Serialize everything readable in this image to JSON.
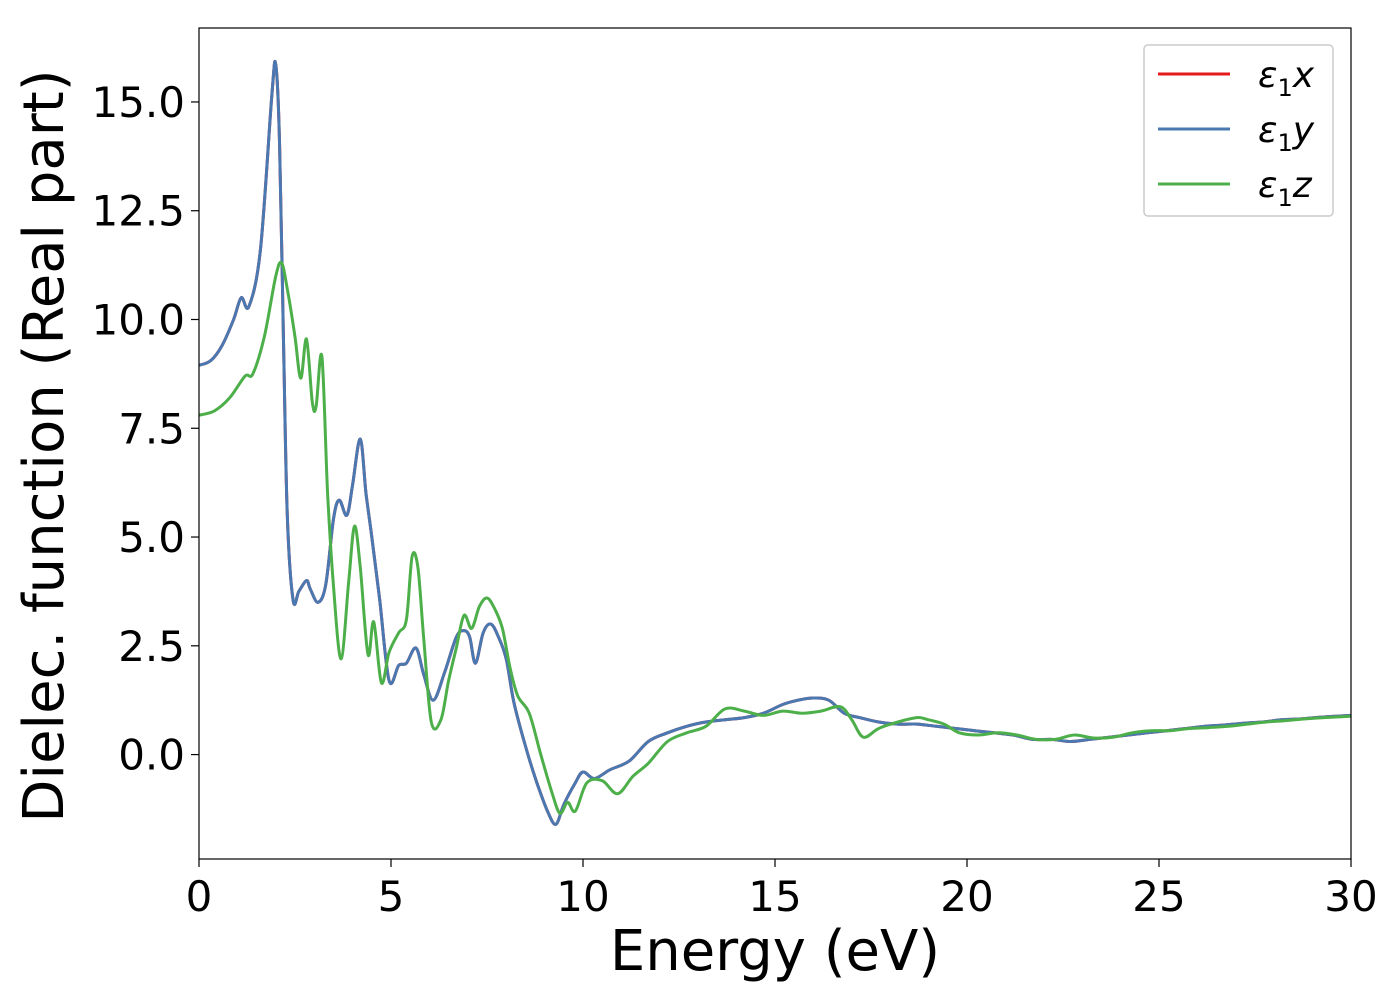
{
  "chart_data": {
    "type": "line",
    "title": "",
    "xlabel": "Energy (eV)",
    "ylabel": "Dielec. function (Real part)",
    "xlim": [
      0,
      30
    ],
    "ylim": [
      -2.4,
      16.7
    ],
    "xticks": [
      {
        "value": 0,
        "label": "0"
      },
      {
        "value": 5,
        "label": "5"
      },
      {
        "value": 10,
        "label": "10"
      },
      {
        "value": 15,
        "label": "15"
      },
      {
        "value": 20,
        "label": "20"
      },
      {
        "value": 25,
        "label": "25"
      },
      {
        "value": 30,
        "label": "30"
      }
    ],
    "yticks": [
      {
        "value": 0,
        "label": "0.0"
      },
      {
        "value": 2.5,
        "label": "2.5"
      },
      {
        "value": 5,
        "label": "5.0"
      },
      {
        "value": 7.5,
        "label": "7.5"
      },
      {
        "value": 10,
        "label": "10.0"
      },
      {
        "value": 12.5,
        "label": "12.5"
      },
      {
        "value": 15,
        "label": "15.0"
      }
    ],
    "grid": false,
    "legend_position": "top-right",
    "series": [
      {
        "name": "ε1x",
        "legend_base": "ε",
        "legend_sub": "1",
        "legend_var": "x",
        "color": "#e41a1c",
        "x": [
          0,
          0.3,
          0.6,
          0.9,
          1.1,
          1.3,
          1.6,
          1.9,
          2.0,
          2.1,
          2.2,
          2.3,
          2.45,
          2.6,
          2.8,
          2.9,
          3.1,
          3.3,
          3.5,
          3.65,
          3.85,
          4.0,
          4.2,
          4.35,
          4.5,
          4.7,
          4.95,
          5.2,
          5.4,
          5.65,
          5.85,
          6.1,
          6.4,
          6.7,
          6.9,
          7.05,
          7.2,
          7.4,
          7.6,
          7.8,
          8.0,
          8.2,
          8.5,
          8.8,
          9.1,
          9.3,
          9.5,
          9.8,
          10.0,
          10.3,
          10.7,
          11.2,
          11.7,
          12.2,
          12.7,
          13.2,
          13.7,
          14.2,
          14.7,
          15.2,
          15.6,
          16.0,
          16.4,
          16.8,
          17.2,
          17.7,
          18.2,
          18.7,
          19.2,
          19.7,
          20.2,
          20.7,
          21.2,
          21.7,
          22.2,
          22.7,
          23.2,
          23.7,
          24.2,
          24.7,
          25.2,
          25.7,
          26.2,
          26.7,
          27.2,
          27.7,
          28.2,
          28.7,
          29.2,
          30
        ],
        "y": [
          8.95,
          9.05,
          9.4,
          10.0,
          10.5,
          10.3,
          11.6,
          15.2,
          15.85,
          14.0,
          9.5,
          5.5,
          3.55,
          3.75,
          4.0,
          3.8,
          3.5,
          3.9,
          5.4,
          5.85,
          5.5,
          6.2,
          7.25,
          6.0,
          5.0,
          3.6,
          1.7,
          2.05,
          2.1,
          2.45,
          1.85,
          1.25,
          1.9,
          2.7,
          2.85,
          2.7,
          2.1,
          2.8,
          3.0,
          2.7,
          2.2,
          1.2,
          0.2,
          -0.65,
          -1.35,
          -1.6,
          -1.15,
          -0.65,
          -0.4,
          -0.55,
          -0.35,
          -0.15,
          0.3,
          0.5,
          0.65,
          0.75,
          0.8,
          0.85,
          0.95,
          1.15,
          1.25,
          1.3,
          1.25,
          0.95,
          0.85,
          0.75,
          0.7,
          0.7,
          0.65,
          0.6,
          0.55,
          0.5,
          0.45,
          0.35,
          0.35,
          0.3,
          0.35,
          0.4,
          0.45,
          0.5,
          0.55,
          0.6,
          0.65,
          0.68,
          0.72,
          0.75,
          0.8,
          0.82,
          0.86,
          0.9
        ]
      },
      {
        "name": "ε1y",
        "legend_base": "ε",
        "legend_sub": "1",
        "legend_var": "y",
        "color": "#4a78b0",
        "x": [
          0,
          0.3,
          0.6,
          0.9,
          1.1,
          1.3,
          1.6,
          1.9,
          2.0,
          2.1,
          2.2,
          2.3,
          2.45,
          2.6,
          2.8,
          2.9,
          3.1,
          3.3,
          3.5,
          3.65,
          3.85,
          4.0,
          4.2,
          4.35,
          4.5,
          4.7,
          4.95,
          5.2,
          5.4,
          5.65,
          5.85,
          6.1,
          6.4,
          6.7,
          6.9,
          7.05,
          7.2,
          7.4,
          7.6,
          7.8,
          8.0,
          8.2,
          8.5,
          8.8,
          9.1,
          9.3,
          9.5,
          9.8,
          10.0,
          10.3,
          10.7,
          11.2,
          11.7,
          12.2,
          12.7,
          13.2,
          13.7,
          14.2,
          14.7,
          15.2,
          15.6,
          16.0,
          16.4,
          16.8,
          17.2,
          17.7,
          18.2,
          18.7,
          19.2,
          19.7,
          20.2,
          20.7,
          21.2,
          21.7,
          22.2,
          22.7,
          23.2,
          23.7,
          24.2,
          24.7,
          25.2,
          25.7,
          26.2,
          26.7,
          27.2,
          27.7,
          28.2,
          28.7,
          29.2,
          30
        ],
        "y": [
          8.95,
          9.05,
          9.4,
          10.0,
          10.5,
          10.3,
          11.6,
          15.2,
          15.85,
          14.0,
          9.5,
          5.5,
          3.55,
          3.75,
          4.0,
          3.8,
          3.5,
          3.9,
          5.4,
          5.85,
          5.5,
          6.2,
          7.25,
          6.0,
          5.0,
          3.6,
          1.7,
          2.05,
          2.1,
          2.45,
          1.85,
          1.25,
          1.9,
          2.7,
          2.85,
          2.7,
          2.1,
          2.8,
          3.0,
          2.7,
          2.2,
          1.2,
          0.2,
          -0.65,
          -1.35,
          -1.6,
          -1.15,
          -0.65,
          -0.4,
          -0.55,
          -0.35,
          -0.15,
          0.3,
          0.5,
          0.65,
          0.75,
          0.8,
          0.85,
          0.95,
          1.15,
          1.25,
          1.3,
          1.25,
          0.95,
          0.85,
          0.75,
          0.7,
          0.7,
          0.65,
          0.6,
          0.55,
          0.5,
          0.45,
          0.35,
          0.35,
          0.3,
          0.35,
          0.4,
          0.45,
          0.5,
          0.55,
          0.6,
          0.65,
          0.68,
          0.72,
          0.75,
          0.8,
          0.82,
          0.86,
          0.9
        ]
      },
      {
        "name": "ε1z",
        "legend_base": "ε",
        "legend_sub": "1",
        "legend_var": "z",
        "color": "#4daf4a",
        "x": [
          0,
          0.4,
          0.8,
          1.2,
          1.4,
          1.7,
          2.0,
          2.15,
          2.3,
          2.5,
          2.65,
          2.8,
          2.95,
          3.05,
          3.2,
          3.35,
          3.5,
          3.7,
          3.9,
          4.05,
          4.2,
          4.4,
          4.55,
          4.75,
          4.95,
          5.2,
          5.4,
          5.55,
          5.7,
          5.85,
          6.05,
          6.3,
          6.5,
          6.7,
          6.9,
          7.1,
          7.3,
          7.5,
          7.7,
          7.9,
          8.1,
          8.3,
          8.6,
          8.9,
          9.2,
          9.4,
          9.6,
          9.8,
          10.1,
          10.5,
          10.9,
          11.3,
          11.7,
          12.2,
          12.7,
          13.2,
          13.7,
          14.2,
          14.7,
          15.2,
          15.7,
          16.2,
          16.7,
          17.0,
          17.3,
          17.7,
          18.2,
          18.7,
          19.0,
          19.4,
          19.8,
          20.3,
          20.8,
          21.3,
          21.8,
          22.3,
          22.8,
          23.3,
          23.8,
          24.3,
          24.8,
          25.3,
          25.8,
          26.3,
          26.8,
          27.3,
          27.8,
          28.3,
          28.8,
          29.3,
          30
        ],
        "y": [
          7.8,
          7.9,
          8.2,
          8.7,
          8.75,
          9.6,
          11.0,
          11.3,
          10.7,
          9.6,
          8.65,
          9.55,
          8.1,
          8.0,
          9.15,
          6.0,
          3.9,
          2.2,
          4.0,
          5.25,
          4.3,
          2.3,
          3.05,
          1.65,
          2.35,
          2.8,
          3.1,
          4.55,
          4.3,
          2.7,
          0.75,
          0.8,
          1.7,
          2.45,
          3.2,
          2.9,
          3.4,
          3.6,
          3.35,
          2.9,
          2.0,
          1.35,
          0.95,
          0.0,
          -0.9,
          -1.35,
          -1.1,
          -1.3,
          -0.65,
          -0.6,
          -0.9,
          -0.5,
          -0.2,
          0.3,
          0.5,
          0.65,
          1.05,
          1.0,
          0.9,
          1.0,
          0.95,
          1.0,
          1.1,
          0.8,
          0.4,
          0.6,
          0.75,
          0.85,
          0.8,
          0.7,
          0.5,
          0.45,
          0.5,
          0.45,
          0.35,
          0.35,
          0.45,
          0.38,
          0.4,
          0.5,
          0.55,
          0.55,
          0.6,
          0.62,
          0.65,
          0.7,
          0.75,
          0.78,
          0.82,
          0.85,
          0.88
        ]
      }
    ]
  }
}
